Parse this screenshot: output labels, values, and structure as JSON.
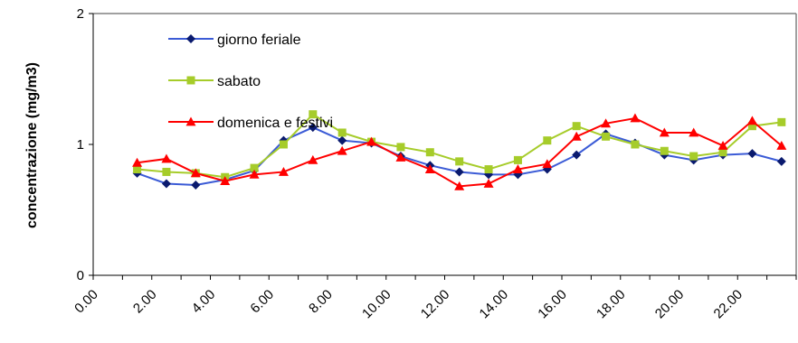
{
  "chart_data": {
    "type": "line",
    "ylabel": "concentrazione (mg/m3)",
    "xlabel": "",
    "title": "",
    "ylim": [
      0,
      2
    ],
    "yticks": [
      "0",
      "1",
      "2"
    ],
    "x_tick_labels": [
      "0.00",
      "2.00",
      "4.00",
      "6.00",
      "8.00",
      "10.00",
      "12.00",
      "14.00",
      "16.00",
      "18.00",
      "20.00",
      "22.00"
    ],
    "x": [
      1,
      2,
      3,
      4,
      5,
      6,
      7,
      8,
      9,
      10,
      11,
      12,
      13,
      14,
      15,
      16,
      17,
      18,
      19,
      20,
      21,
      22,
      23
    ],
    "legend_position": "top-left",
    "grid": false,
    "series": [
      {
        "name": "giorno feriale",
        "color": "#3b5bd6",
        "marker_color": "#0a1a6e",
        "marker": "diamond",
        "values": [
          0.78,
          0.7,
          0.69,
          0.73,
          0.8,
          1.03,
          1.13,
          1.03,
          1.01,
          0.91,
          0.84,
          0.79,
          0.77,
          0.77,
          0.81,
          0.92,
          1.08,
          1.01,
          0.92,
          0.88,
          0.92,
          0.93,
          0.87
        ]
      },
      {
        "name": "sabato",
        "color": "#a6cc2a",
        "marker_color": "#a6cc2a",
        "marker": "square",
        "values": [
          0.81,
          0.79,
          0.78,
          0.75,
          0.82,
          1.0,
          1.23,
          1.09,
          1.02,
          0.98,
          0.94,
          0.87,
          0.81,
          0.88,
          1.03,
          1.14,
          1.06,
          1.0,
          0.95,
          0.91,
          0.94,
          1.14,
          1.17
        ]
      },
      {
        "name": "domenica e festivi",
        "color": "#ff0000",
        "marker_color": "#ff0000",
        "marker": "triangle",
        "values": [
          0.86,
          0.89,
          0.78,
          0.72,
          0.77,
          0.79,
          0.88,
          0.95,
          1.02,
          0.9,
          0.81,
          0.68,
          0.7,
          0.81,
          0.85,
          1.06,
          1.16,
          1.2,
          1.09,
          1.09,
          0.99,
          1.18,
          0.99
        ]
      }
    ]
  }
}
